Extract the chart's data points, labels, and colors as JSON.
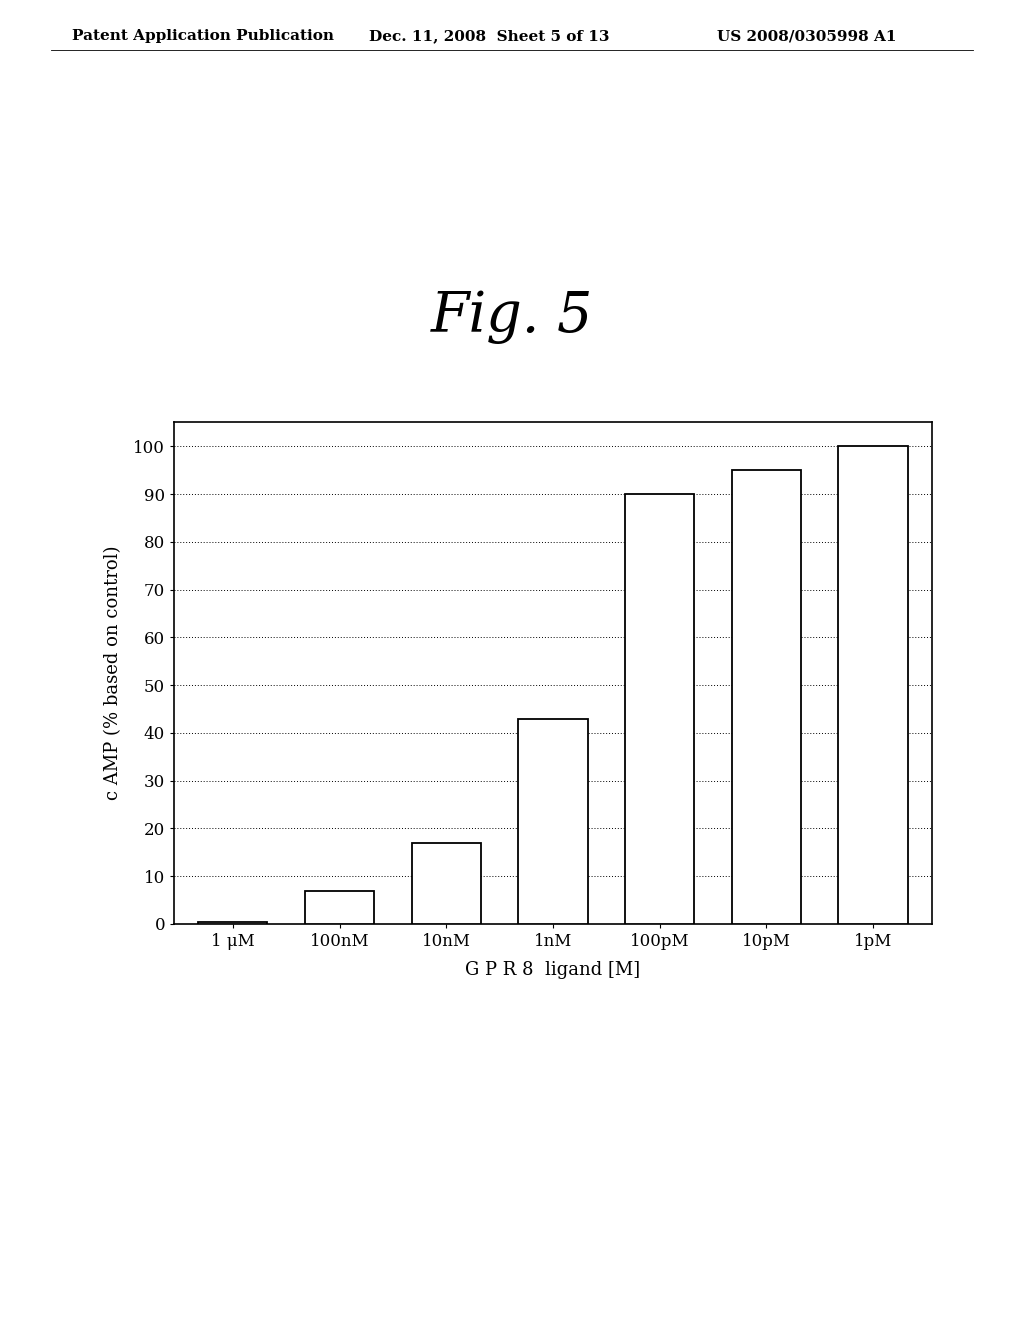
{
  "categories": [
    "1 μM",
    "100nM",
    "10nM",
    "1nM",
    "100pM",
    "10pM",
    "1pM"
  ],
  "values": [
    0.5,
    7,
    17,
    43,
    90,
    95,
    100
  ],
  "bar_color": "white",
  "bar_edgecolor": "black",
  "title": "Fig. 5",
  "xlabel": "G P R 8  ligand [M]",
  "ylabel": "c AMP (% based on control)",
  "ylim": [
    0,
    105
  ],
  "yticks": [
    0,
    10,
    20,
    30,
    40,
    50,
    60,
    70,
    80,
    90,
    100
  ],
  "background_color": "white",
  "header_left": "Patent Application Publication",
  "header_center": "Dec. 11, 2008  Sheet 5 of 13",
  "header_right": "US 2008/0305998 A1",
  "title_fontsize": 40,
  "axis_fontsize": 13,
  "tick_fontsize": 12,
  "header_fontsize": 11
}
